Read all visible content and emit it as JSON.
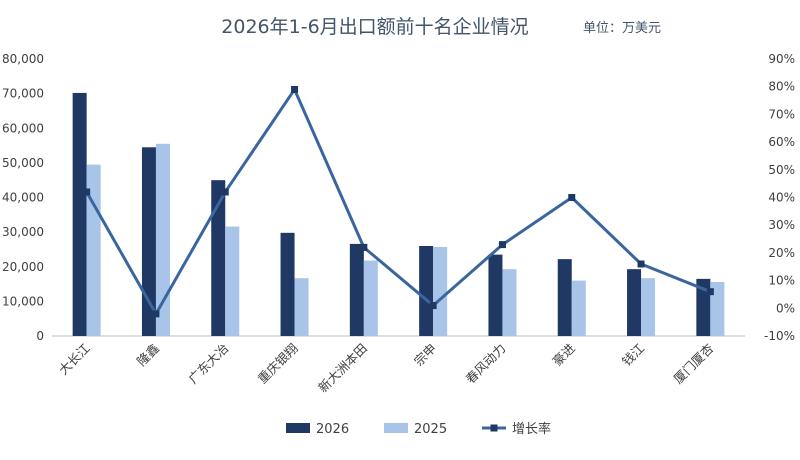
{
  "chart_data": {
    "type": "bar",
    "title": "2026年1-6月出口额前十名企业情况",
    "unit_label": "单位：万美元",
    "categories": [
      "大长江",
      "隆鑫",
      "广东大冶",
      "重庆银翔",
      "新大洲本田",
      "宗申",
      "春风动力",
      "豪进",
      "钱江",
      "厦门厦杏"
    ],
    "series": [
      {
        "name": "2026",
        "kind": "bar",
        "axis": "left",
        "color": "#203864",
        "values": [
          70200,
          54500,
          45000,
          29800,
          26600,
          26000,
          23500,
          22200,
          19300,
          16500
        ]
      },
      {
        "name": "2025",
        "kind": "bar",
        "axis": "left",
        "color": "#a8c4e8",
        "values": [
          49500,
          55500,
          31600,
          16700,
          21800,
          25700,
          19300,
          16000,
          16700,
          15600
        ]
      },
      {
        "name": "增长率",
        "kind": "line",
        "axis": "right",
        "color": "#3a66a0",
        "values": [
          42,
          -2,
          42,
          79,
          22,
          1,
          23,
          40,
          16,
          6
        ]
      }
    ],
    "y_left": {
      "min": 0,
      "max": 80000,
      "step": 10000,
      "tick_labels": [
        "0",
        "10,000",
        "20,000",
        "30,000",
        "40,000",
        "50,000",
        "60,000",
        "70,000",
        "80,000"
      ]
    },
    "y_right": {
      "min": -10,
      "max": 90,
      "step": 10,
      "tick_labels": [
        "-10%",
        "0%",
        "10%",
        "20%",
        "30%",
        "40%",
        "50%",
        "60%",
        "70%",
        "80%",
        "90%"
      ]
    },
    "grid": false,
    "legend_position": "bottom"
  }
}
